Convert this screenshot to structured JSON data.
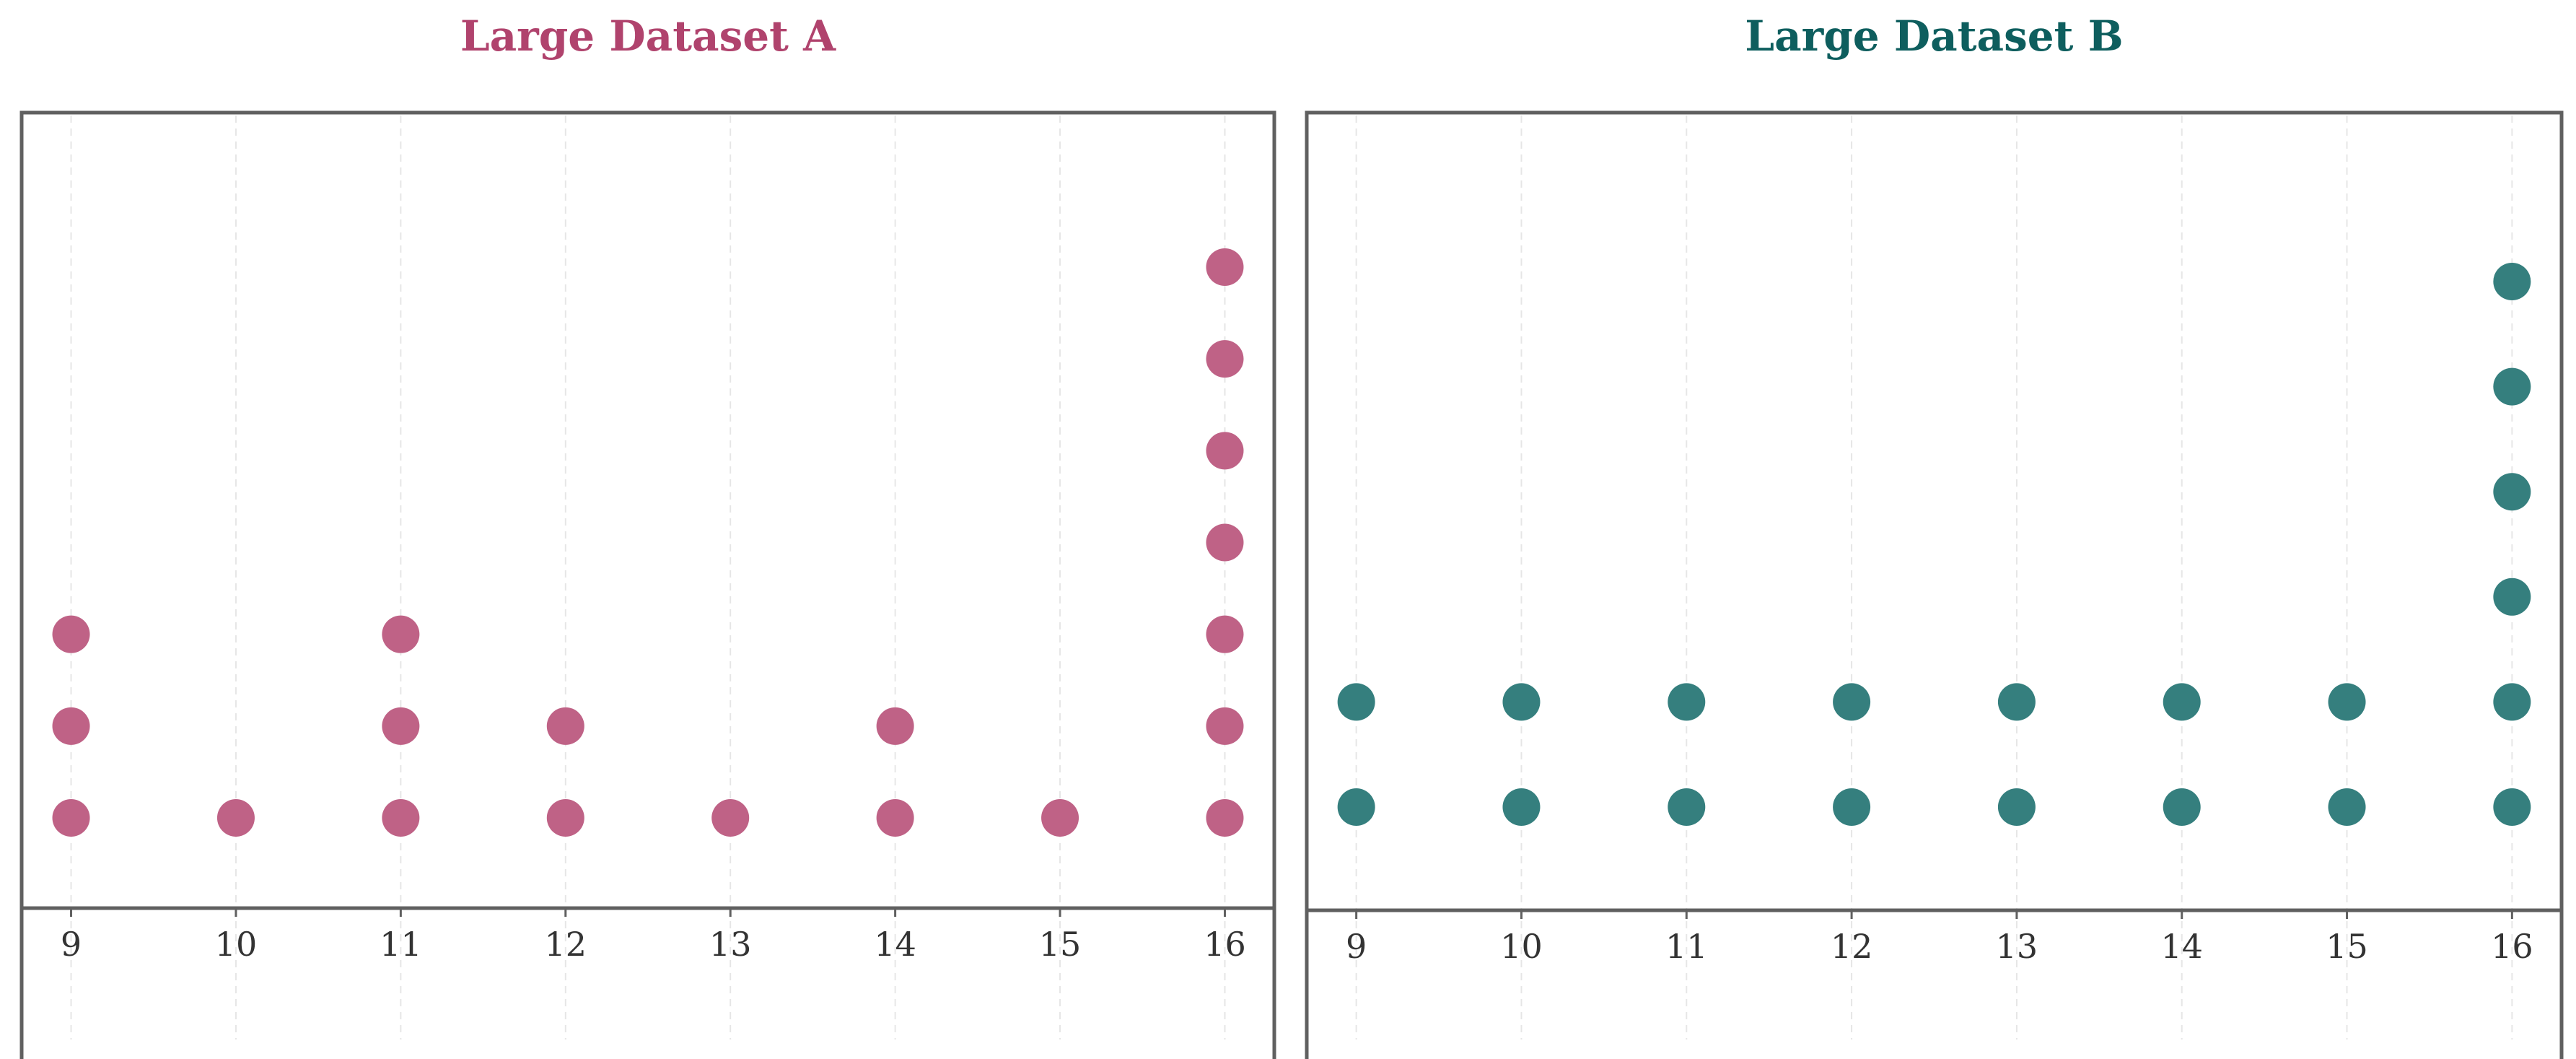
{
  "chart_data": [
    {
      "type": "scatter",
      "style": "dot-plot",
      "title": "Large Dataset A",
      "title_color": "#B0436D",
      "marker_color": "#BF6286",
      "xlabel": "",
      "ylabel": "",
      "x_ticks": [
        9,
        10,
        11,
        12,
        13,
        14,
        15,
        16
      ],
      "xlim": [
        8.7,
        16.3
      ],
      "ylim": [
        0,
        8
      ],
      "grid": "vertical dashed",
      "legend": "none",
      "points": [
        {
          "x": 9,
          "y": 1
        },
        {
          "x": 9,
          "y": 2
        },
        {
          "x": 9,
          "y": 3
        },
        {
          "x": 10,
          "y": 1
        },
        {
          "x": 11,
          "y": 1
        },
        {
          "x": 11,
          "y": 2
        },
        {
          "x": 11,
          "y": 3
        },
        {
          "x": 12,
          "y": 1
        },
        {
          "x": 12,
          "y": 2
        },
        {
          "x": 13,
          "y": 1
        },
        {
          "x": 14,
          "y": 1
        },
        {
          "x": 14,
          "y": 2
        },
        {
          "x": 15,
          "y": 1
        },
        {
          "x": 16,
          "y": 1
        },
        {
          "x": 16,
          "y": 2
        },
        {
          "x": 16,
          "y": 3
        },
        {
          "x": 16,
          "y": 4
        },
        {
          "x": 16,
          "y": 5
        },
        {
          "x": 16,
          "y": 6
        },
        {
          "x": 16,
          "y": 7
        }
      ]
    },
    {
      "type": "scatter",
      "style": "dot-plot",
      "title": "Large Dataset B",
      "title_color": "#0E5E5E",
      "marker_color": "#357F7E",
      "xlabel": "",
      "ylabel": "",
      "x_ticks": [
        9,
        10,
        11,
        12,
        13,
        14,
        15,
        16
      ],
      "xlim": [
        8.7,
        16.3
      ],
      "ylim": [
        0,
        7
      ],
      "grid": "vertical dashed",
      "legend": "none",
      "points": [
        {
          "x": 9,
          "y": 1
        },
        {
          "x": 9,
          "y": 2
        },
        {
          "x": 10,
          "y": 1
        },
        {
          "x": 10,
          "y": 2
        },
        {
          "x": 11,
          "y": 1
        },
        {
          "x": 11,
          "y": 2
        },
        {
          "x": 12,
          "y": 1
        },
        {
          "x": 12,
          "y": 2
        },
        {
          "x": 13,
          "y": 1
        },
        {
          "x": 13,
          "y": 2
        },
        {
          "x": 14,
          "y": 1
        },
        {
          "x": 14,
          "y": 2
        },
        {
          "x": 15,
          "y": 1
        },
        {
          "x": 15,
          "y": 2
        },
        {
          "x": 16,
          "y": 1
        },
        {
          "x": 16,
          "y": 2
        },
        {
          "x": 16,
          "y": 3
        },
        {
          "x": 16,
          "y": 4
        },
        {
          "x": 16,
          "y": 5
        },
        {
          "x": 16,
          "y": 6
        }
      ]
    }
  ]
}
